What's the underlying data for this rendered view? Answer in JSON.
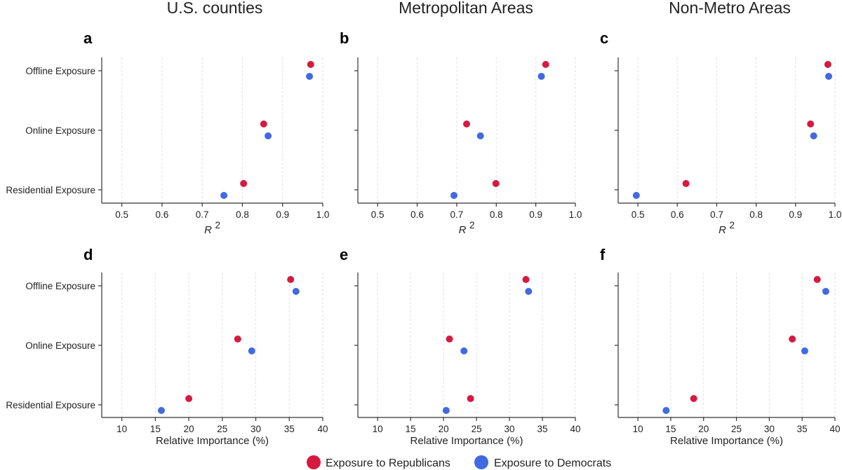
{
  "column_titles": [
    "U.S. counties",
    "Metropolitan Areas",
    "Non-Metro Areas"
  ],
  "legend": [
    {
      "label": "Exposure to Republicans",
      "color": "#d7193f"
    },
    {
      "label": "Exposure to Democrats",
      "color": "#4169e1"
    }
  ],
  "chart_data": [
    {
      "type": "scatter",
      "panel": "a",
      "column": "U.S. counties",
      "categories": [
        "Offline Exposure",
        "Online Exposure",
        "Residential Exposure"
      ],
      "xlabel": "R",
      "xlabel_sup": "2",
      "xlim": [
        0.45,
        1.0
      ],
      "xticks": [
        0.5,
        0.6,
        0.7,
        0.8,
        0.9,
        1.0
      ],
      "xtick_labels": [
        "0.5",
        "0.6",
        "0.7",
        "0.8",
        "0.9",
        "1.0"
      ],
      "series": [
        {
          "name": "Exposure to Republicans",
          "values": [
            0.97,
            0.853,
            0.803
          ]
        },
        {
          "name": "Exposure to Democrats",
          "values": [
            0.967,
            0.864,
            0.754
          ]
        }
      ]
    },
    {
      "type": "scatter",
      "panel": "b",
      "column": "Metropolitan Areas",
      "categories": [
        "Offline Exposure",
        "Online Exposure",
        "Residential Exposure"
      ],
      "xlabel": "R",
      "xlabel_sup": "2",
      "xlim": [
        0.45,
        1.0
      ],
      "xticks": [
        0.5,
        0.6,
        0.7,
        0.8,
        0.9,
        1.0
      ],
      "xtick_labels": [
        "0.5",
        "0.6",
        "0.7",
        "0.8",
        "0.9",
        "1.0"
      ],
      "series": [
        {
          "name": "Exposure to Republicans",
          "values": [
            0.925,
            0.725,
            0.799
          ]
        },
        {
          "name": "Exposure to Democrats",
          "values": [
            0.914,
            0.76,
            0.693
          ]
        }
      ]
    },
    {
      "type": "scatter",
      "panel": "c",
      "column": "Non-Metro Areas",
      "categories": [
        "Offline Exposure",
        "Online Exposure",
        "Residential Exposure"
      ],
      "xlabel": "R",
      "xlabel_sup": "2",
      "xlim": [
        0.45,
        1.0
      ],
      "xticks": [
        0.5,
        0.6,
        0.7,
        0.8,
        0.9,
        1.0
      ],
      "xtick_labels": [
        "0.5",
        "0.6",
        "0.7",
        "0.8",
        "0.9",
        "1.0"
      ],
      "series": [
        {
          "name": "Exposure to Republicans",
          "values": [
            0.982,
            0.938,
            0.622
          ]
        },
        {
          "name": "Exposure to Democrats",
          "values": [
            0.984,
            0.946,
            0.496
          ]
        }
      ]
    },
    {
      "type": "scatter",
      "panel": "d",
      "column": "U.S. counties",
      "categories": [
        "Offline Exposure",
        "Online Exposure",
        "Residential Exposure"
      ],
      "xlabel": "Relative Importance (%)",
      "xlim": [
        7,
        40
      ],
      "xticks": [
        10,
        15,
        20,
        25,
        30,
        35,
        40
      ],
      "xtick_labels": [
        "10",
        "15",
        "20",
        "25",
        "30",
        "35",
        "40"
      ],
      "series": [
        {
          "name": "Exposure to Republicans",
          "values": [
            35.2,
            27.3,
            20.0
          ]
        },
        {
          "name": "Exposure to Democrats",
          "values": [
            36.0,
            29.4,
            15.9
          ]
        }
      ]
    },
    {
      "type": "scatter",
      "panel": "e",
      "column": "Metropolitan Areas",
      "categories": [
        "Offline Exposure",
        "Online Exposure",
        "Residential Exposure"
      ],
      "xlabel": "Relative Importance (%)",
      "xlim": [
        7,
        40
      ],
      "xticks": [
        10,
        15,
        20,
        25,
        30,
        35,
        40
      ],
      "xtick_labels": [
        "10",
        "15",
        "20",
        "25",
        "30",
        "35",
        "40"
      ],
      "series": [
        {
          "name": "Exposure to Republicans",
          "values": [
            32.5,
            20.9,
            24.1
          ]
        },
        {
          "name": "Exposure to Democrats",
          "values": [
            32.9,
            23.1,
            20.4
          ]
        }
      ]
    },
    {
      "type": "scatter",
      "panel": "f",
      "column": "Non-Metro Areas",
      "categories": [
        "Offline Exposure",
        "Online Exposure",
        "Residential Exposure"
      ],
      "xlabel": "Relative Importance (%)",
      "xlim": [
        7,
        40
      ],
      "xticks": [
        10,
        15,
        20,
        25,
        30,
        35,
        40
      ],
      "xtick_labels": [
        "10",
        "15",
        "20",
        "25",
        "30",
        "35",
        "40"
      ],
      "series": [
        {
          "name": "Exposure to Republicans",
          "values": [
            37.3,
            33.5,
            18.5
          ]
        },
        {
          "name": "Exposure to Democrats",
          "values": [
            38.6,
            35.4,
            14.3
          ]
        }
      ]
    }
  ]
}
